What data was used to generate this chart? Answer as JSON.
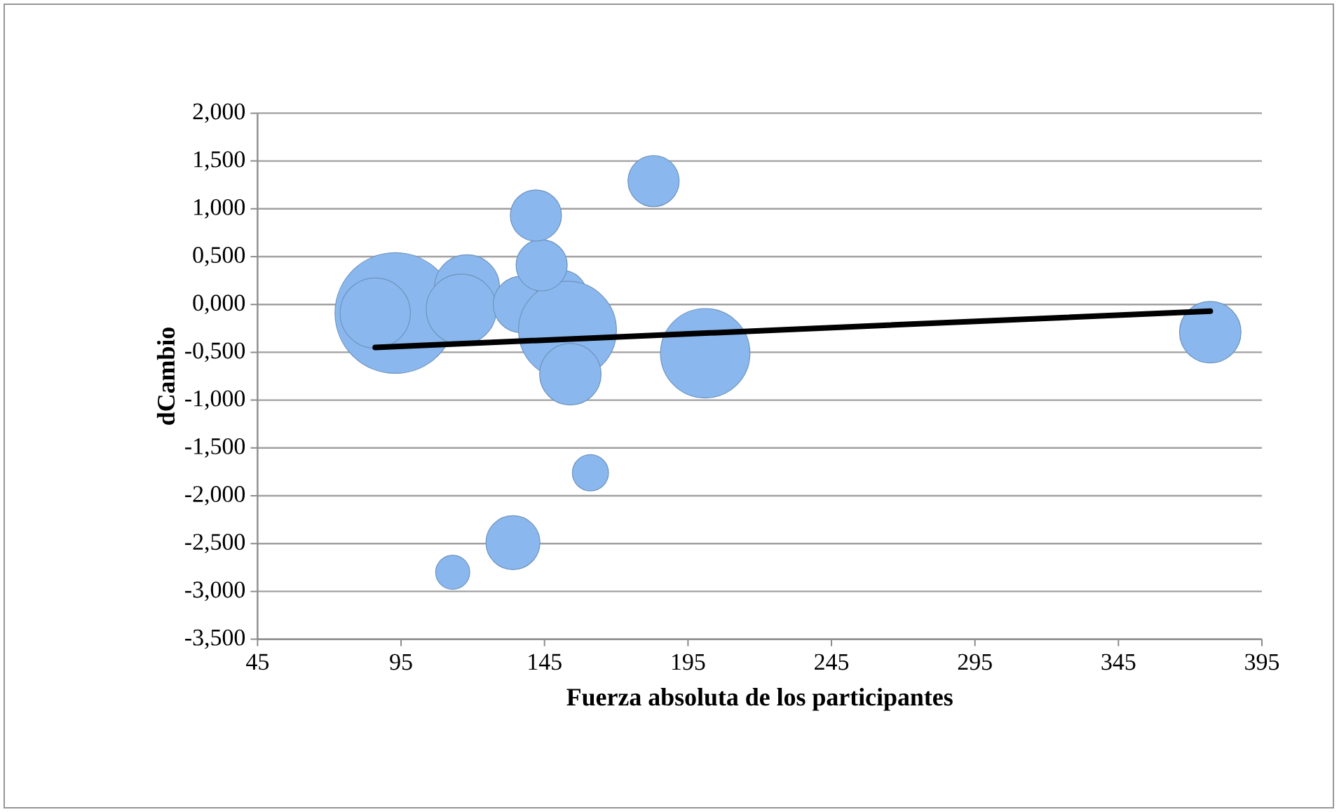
{
  "chart_data": {
    "type": "bubble",
    "xlabel": "Fuerza absoluta de los participantes",
    "ylabel": "dCambio",
    "xlim": [
      45,
      395
    ],
    "xticks": [
      45,
      95,
      145,
      195,
      245,
      295,
      345,
      395
    ],
    "ylim": [
      -3.5,
      2
    ],
    "yticks": [
      {
        "value": 2,
        "label": "2,000"
      },
      {
        "value": 1.5,
        "label": "1,500"
      },
      {
        "value": 1,
        "label": "1,000"
      },
      {
        "value": 0.5,
        "label": "0,500"
      },
      {
        "value": 0,
        "label": "0,000"
      },
      {
        "value": -0.5,
        "label": "-0,500"
      },
      {
        "value": -1,
        "label": "-1,000"
      },
      {
        "value": -1.5,
        "label": "-1,500"
      },
      {
        "value": -2,
        "label": "-2,000"
      },
      {
        "value": -2.5,
        "label": "-2,500"
      },
      {
        "value": -3,
        "label": "-3,000"
      },
      {
        "value": -3.5,
        "label": "-3,500"
      }
    ],
    "grid": "y",
    "series": [
      {
        "color": "#8ab8ee",
        "x": [
          93,
          86,
          118,
          116,
          137,
          151,
          153,
          154,
          144,
          142,
          183,
          201,
          161,
          134,
          113,
          377
        ],
        "values": [
          -0.09,
          -0.09,
          0.18,
          -0.05,
          0.0,
          0.09,
          -0.27,
          -0.73,
          0.41,
          0.93,
          1.29,
          -0.51,
          -1.76,
          -2.49,
          -2.8,
          -0.29
        ],
        "sizes": [
          1,
          0.34,
          0.29,
          0.34,
          0.22,
          0.18,
          0.66,
          0.26,
          0.18,
          0.18,
          0.18,
          0.55,
          0.09,
          0.2,
          0.08,
          0.26
        ]
      },
      {
        "type": "line",
        "color": "#000000",
        "x": [
          86,
          377
        ],
        "values": [
          -0.45,
          -0.07
        ]
      }
    ]
  }
}
